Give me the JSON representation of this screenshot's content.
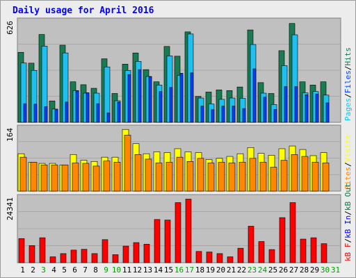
{
  "title": "Daily usage for April 2016",
  "colors": {
    "hits": "#1a7a52",
    "files": "#1ec0f0",
    "pages": "#0040ff",
    "visits": "#ffff00",
    "sites": "#ff8800",
    "kbytes": "#ff0000",
    "kb_in": "#0000ff",
    "kb_out": "#007f3f",
    "panel_bg": "#c0c0c0",
    "weekend_day": "#00a000",
    "weekday": "#000000"
  },
  "chart_data": [
    {
      "type": "bar",
      "panel": "hits-files-pages",
      "y_max_label": "626",
      "ylim": [
        0,
        626
      ],
      "legend_right": [
        {
          "text": "Pages",
          "color_key": "files"
        },
        {
          "text": "/",
          "color_key": "weekday"
        },
        {
          "text": "Files",
          "color_key": "pages"
        },
        {
          "text": "/",
          "color_key": "weekday"
        },
        {
          "text": "Hits",
          "color_key": "hits"
        }
      ],
      "categories": [
        "1",
        "2",
        "3",
        "4",
        "5",
        "6",
        "7",
        "8",
        "9",
        "10",
        "11",
        "12",
        "13",
        "14",
        "15",
        "16",
        "17",
        "18",
        "19",
        "20",
        "21",
        "22",
        "23",
        "24",
        "25",
        "26",
        "27",
        "28",
        "29",
        "30",
        "31"
      ],
      "series": [
        {
          "name": "Hits",
          "values": [
            432,
            365,
            542,
            132,
            476,
            250,
            232,
            210,
            392,
            178,
            359,
            428,
            325,
            250,
            468,
            408,
            558,
            160,
            187,
            200,
            196,
            218,
            570,
            245,
            178,
            442,
            610,
            250,
            230,
            250,
            0
          ]
        },
        {
          "name": "Files",
          "values": [
            366,
            320,
            470,
            82,
            428,
            196,
            180,
            180,
            342,
            133,
            320,
            376,
            283,
            230,
            410,
            290,
            545,
            150,
            113,
            142,
            150,
            148,
            480,
            180,
            110,
            350,
            540,
            182,
            190,
            168,
            0
          ]
        },
        {
          "name": "Pages",
          "values": [
            115,
            112,
            97,
            78,
            125,
            195,
            183,
            115,
            58,
            125,
            295,
            325,
            280,
            190,
            215,
            303,
            305,
            100,
            78,
            100,
            100,
            85,
            330,
            155,
            80,
            220,
            220,
            170,
            175,
            120,
            0
          ]
        }
      ]
    },
    {
      "type": "bar",
      "panel": "visits-sites",
      "y_max_label": "164",
      "ylim": [
        0,
        164
      ],
      "legend_right": [
        {
          "text": "Sites",
          "color_key": "sites"
        },
        {
          "text": "/",
          "color_key": "weekday"
        },
        {
          "text": "Visits",
          "color_key": "visits"
        }
      ],
      "categories": [
        "1",
        "2",
        "3",
        "4",
        "5",
        "6",
        "7",
        "8",
        "9",
        "10",
        "11",
        "12",
        "13",
        "14",
        "15",
        "16",
        "17",
        "18",
        "19",
        "20",
        "21",
        "22",
        "23",
        "24",
        "25",
        "26",
        "27",
        "28",
        "29",
        "30",
        "31"
      ],
      "series": [
        {
          "name": "Visits",
          "values": [
            97,
            75,
            72,
            72,
            68,
            95,
            80,
            77,
            88,
            88,
            160,
            123,
            97,
            102,
            100,
            110,
            102,
            100,
            82,
            85,
            90,
            97,
            113,
            98,
            93,
            110,
            117,
            108,
            92,
            100,
            0
          ]
        },
        {
          "name": "Sites",
          "values": [
            88,
            75,
            68,
            68,
            68,
            73,
            72,
            65,
            78,
            75,
            145,
            95,
            83,
            73,
            75,
            88,
            77,
            85,
            73,
            75,
            73,
            75,
            85,
            75,
            62,
            80,
            95,
            90,
            75,
            73,
            0
          ]
        }
      ]
    },
    {
      "type": "bar",
      "panel": "kbytes",
      "y_max_label": "24341",
      "ylim": [
        0,
        24341
      ],
      "legend_right": [
        {
          "text": "kB F",
          "color_key": "kbytes"
        },
        {
          "text": "/",
          "color_key": "weekday"
        },
        {
          "text": "kB In",
          "color_key": "kb_in"
        },
        {
          "text": "/",
          "color_key": "weekday"
        },
        {
          "text": "kB Out",
          "color_key": "kb_out"
        }
      ],
      "categories": [
        "1",
        "2",
        "3",
        "4",
        "5",
        "6",
        "7",
        "8",
        "9",
        "10",
        "11",
        "12",
        "13",
        "14",
        "15",
        "16",
        "17",
        "18",
        "19",
        "20",
        "21",
        "22",
        "23",
        "24",
        "25",
        "26",
        "27",
        "28",
        "29",
        "30",
        "31"
      ],
      "series": [
        {
          "name": "kB F",
          "values": [
            9000,
            6400,
            9300,
            2200,
            3400,
            4700,
            5000,
            3400,
            8600,
            3000,
            6200,
            7500,
            6900,
            16100,
            15900,
            22400,
            23700,
            4200,
            4000,
            3400,
            2200,
            5400,
            13600,
            7900,
            4900,
            16800,
            22400,
            8800,
            9300,
            7100,
            0
          ]
        }
      ]
    }
  ],
  "x_axis": {
    "day_labels": [
      {
        "text": "1",
        "weekend": false
      },
      {
        "text": "2",
        "weekend": false
      },
      {
        "text": "3",
        "weekend": true
      },
      {
        "text": "4",
        "weekend": false
      },
      {
        "text": "5",
        "weekend": false
      },
      {
        "text": "6",
        "weekend": false
      },
      {
        "text": "7",
        "weekend": false
      },
      {
        "text": "8",
        "weekend": false
      },
      {
        "text": "9",
        "weekend": true
      },
      {
        "text": "10",
        "weekend": true
      },
      {
        "text": "11",
        "weekend": false
      },
      {
        "text": "12",
        "weekend": false
      },
      {
        "text": "13",
        "weekend": false
      },
      {
        "text": "14",
        "weekend": false
      },
      {
        "text": "15",
        "weekend": false
      },
      {
        "text": "16",
        "weekend": true
      },
      {
        "text": "17",
        "weekend": true
      },
      {
        "text": "18",
        "weekend": false
      },
      {
        "text": "19",
        "weekend": false
      },
      {
        "text": "20",
        "weekend": false
      },
      {
        "text": "21",
        "weekend": false
      },
      {
        "text": "22",
        "weekend": false
      },
      {
        "text": "23",
        "weekend": true
      },
      {
        "text": "24",
        "weekend": true
      },
      {
        "text": "25",
        "weekend": false
      },
      {
        "text": "26",
        "weekend": false
      },
      {
        "text": "27",
        "weekend": false
      },
      {
        "text": "28",
        "weekend": false
      },
      {
        "text": "29",
        "weekend": false
      },
      {
        "text": "30",
        "weekend": true
      },
      {
        "text": "31",
        "weekend": true
      }
    ]
  }
}
